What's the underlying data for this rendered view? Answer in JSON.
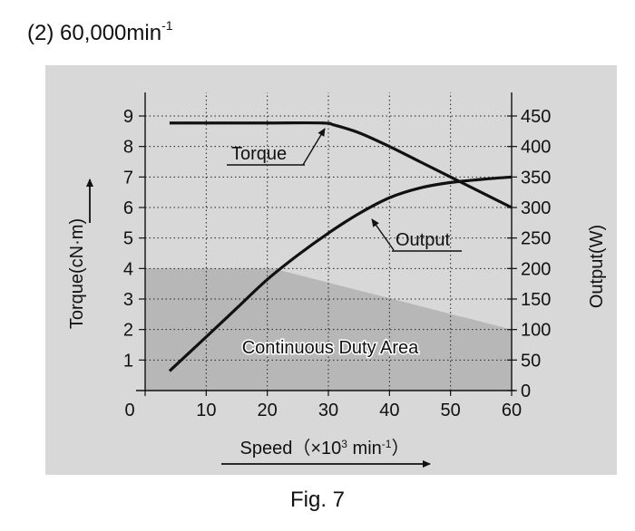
{
  "heading": {
    "prefix": "(2) 60,000min",
    "superscript": "-1"
  },
  "caption": "Fig. 7",
  "chart_data": {
    "type": "line",
    "panel_color": "#d8d8d8",
    "area_color": "#b7b7b7",
    "x": {
      "label": "Speed（×10",
      "label_sup": "3",
      "label_tail": " min",
      "label_sup2": "-1",
      "label_end": "）",
      "min": 0,
      "max": 60,
      "ticks": [
        0,
        10,
        20,
        30,
        40,
        50,
        60
      ]
    },
    "y_left": {
      "label": "Torque(cN·m)",
      "min": 0,
      "max": 9,
      "ticks": [
        1,
        2,
        3,
        4,
        5,
        6,
        7,
        8,
        9
      ]
    },
    "y_right": {
      "label": "Output(W)",
      "min": 0,
      "max": 450,
      "ticks": [
        0,
        50,
        100,
        150,
        200,
        250,
        300,
        350,
        400,
        450
      ]
    },
    "series": [
      {
        "name": "Torque",
        "axis": "left",
        "x": [
          4,
          10,
          20,
          29,
          31,
          35,
          40,
          45,
          50,
          55,
          60
        ],
        "y": [
          8.77,
          8.77,
          8.77,
          8.77,
          8.7,
          8.45,
          8.0,
          7.5,
          7.0,
          6.5,
          6.0
        ]
      },
      {
        "name": "Output",
        "axis": "right",
        "x": [
          4,
          10,
          15,
          20,
          25,
          30,
          35,
          40,
          45,
          50,
          55,
          60
        ],
        "y": [
          32,
          88,
          135,
          182,
          222,
          258,
          290,
          316,
          332,
          341,
          346,
          350
        ]
      }
    ],
    "continuous_duty_area": {
      "label": "Continuous Duty Area",
      "boundary_x": [
        0,
        21,
        60
      ],
      "boundary_torque": [
        4.0,
        4.0,
        2.0
      ]
    },
    "annotations": [
      {
        "text": "Torque",
        "series": "Torque"
      },
      {
        "text": "Output",
        "series": "Output"
      }
    ]
  }
}
